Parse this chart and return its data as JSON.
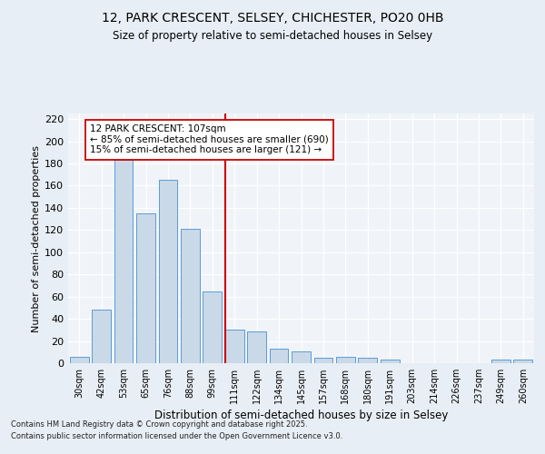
{
  "title1": "12, PARK CRESCENT, SELSEY, CHICHESTER, PO20 0HB",
  "title2": "Size of property relative to semi-detached houses in Selsey",
  "xlabel": "Distribution of semi-detached houses by size in Selsey",
  "ylabel": "Number of semi-detached properties",
  "categories": [
    "30sqm",
    "42sqm",
    "53sqm",
    "65sqm",
    "76sqm",
    "88sqm",
    "99sqm",
    "111sqm",
    "122sqm",
    "134sqm",
    "145sqm",
    "157sqm",
    "168sqm",
    "180sqm",
    "191sqm",
    "203sqm",
    "214sqm",
    "226sqm",
    "237sqm",
    "249sqm",
    "260sqm"
  ],
  "values": [
    6,
    48,
    183,
    135,
    165,
    121,
    65,
    30,
    29,
    13,
    11,
    5,
    6,
    5,
    3,
    0,
    0,
    0,
    0,
    3,
    3
  ],
  "bar_color": "#c9d9e8",
  "bar_edge_color": "#5b9bd5",
  "vline_index": 7,
  "vline_color": "#cc0000",
  "annotation_title": "12 PARK CRESCENT: 107sqm",
  "annotation_line1": "← 85% of semi-detached houses are smaller (690)",
  "annotation_line2": "15% of semi-detached houses are larger (121) →",
  "annotation_box_color": "#cc0000",
  "ylim": [
    0,
    225
  ],
  "yticks": [
    0,
    20,
    40,
    60,
    80,
    100,
    120,
    140,
    160,
    180,
    200,
    220
  ],
  "footnote1": "Contains HM Land Registry data © Crown copyright and database right 2025.",
  "footnote2": "Contains public sector information licensed under the Open Government Licence v3.0.",
  "bg_color": "#e8eef5",
  "plot_bg_color": "#f0f4f9",
  "title1_fontsize": 10,
  "title2_fontsize": 8.5
}
